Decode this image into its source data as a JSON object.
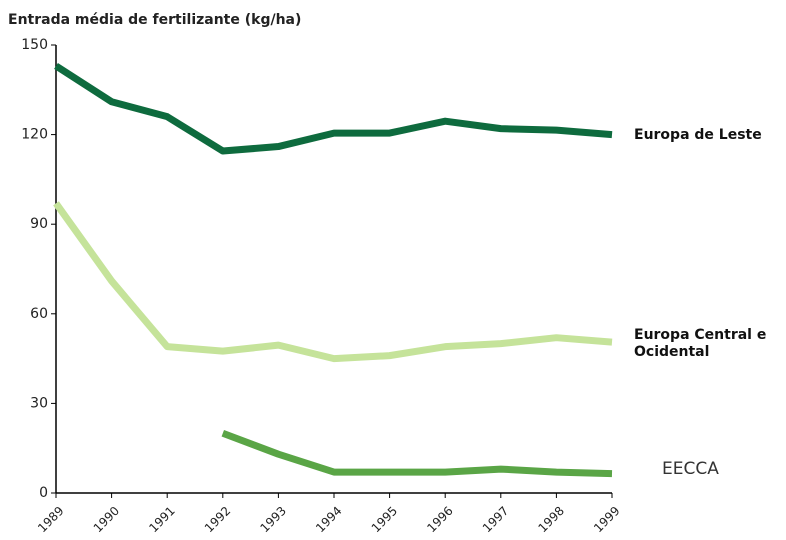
{
  "chart_data": {
    "type": "line",
    "title": "Entrada média de fertilizante (kg/ha)",
    "categories": [
      "1989",
      "1990",
      "1991",
      "1992",
      "1993",
      "1994",
      "1995",
      "1996",
      "1997",
      "1998",
      "1999"
    ],
    "ylim": [
      0,
      150
    ],
    "yticks": [
      0,
      30,
      60,
      90,
      120,
      150
    ],
    "series": [
      {
        "name": "Europa de Leste",
        "color": "#0e6b3e",
        "values": [
          143,
          131,
          126,
          114.5,
          116,
          120.5,
          120.5,
          124.5,
          122,
          121.5,
          120
        ]
      },
      {
        "name": "Europa Central e Ocidental",
        "color": "#c5e39a",
        "values": [
          97,
          71,
          49,
          47.5,
          49.5,
          45,
          46,
          49,
          50,
          52,
          50.5
        ]
      },
      {
        "name": "EECCA",
        "color": "#5aa546",
        "values": [
          null,
          null,
          null,
          20,
          13,
          7,
          7,
          7,
          8,
          7,
          6.5
        ]
      }
    ]
  }
}
